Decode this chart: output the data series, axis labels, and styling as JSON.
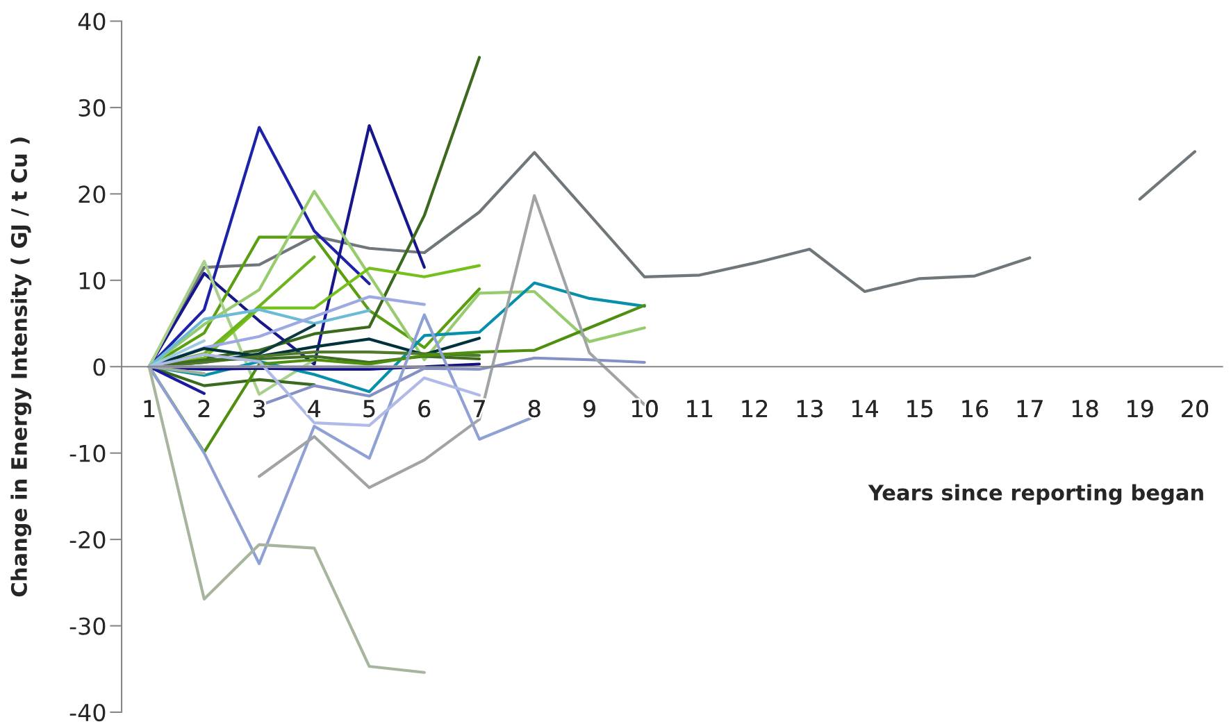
{
  "chart_data": {
    "type": "line",
    "xlabel": "Years since reporting began",
    "ylabel": "Change in Energy Intensity ( GJ / t Cu )",
    "categories": [
      "1",
      "2",
      "3",
      "4",
      "5",
      "6",
      "7",
      "8",
      "9",
      "10",
      "11",
      "12",
      "13",
      "14",
      "15",
      "16",
      "17",
      "18",
      "19",
      "20"
    ],
    "ylim": [
      -40,
      40
    ],
    "yticks": [
      -40,
      -30,
      -20,
      -10,
      0,
      10,
      20,
      30,
      40
    ],
    "grid": false,
    "legend": false,
    "line_style": "solid",
    "marker": "none",
    "series": [
      {
        "color": "#6f777b",
        "values": [
          0,
          11.5,
          11.8,
          15.1,
          13.7,
          13.2,
          17.9,
          24.8,
          17.6,
          10.4,
          10.6,
          12.0,
          13.6,
          8.7,
          10.2,
          10.5,
          12.6,
          null,
          19.4,
          24.9
        ]
      },
      {
        "color": "#1e22a8",
        "values": [
          0,
          6.6,
          27.7,
          15.7,
          9.6,
          null,
          null,
          null,
          null,
          null,
          null,
          null,
          null,
          null,
          null,
          null,
          null,
          null,
          null,
          null
        ]
      },
      {
        "color": "#17168a",
        "values": [
          0,
          10.8,
          5.3,
          0.3,
          27.9,
          11.5,
          null,
          null,
          null,
          null,
          null,
          null,
          null,
          null,
          null,
          null,
          null,
          null,
          null,
          null
        ]
      },
      {
        "color": "#5a9e12",
        "values": [
          0,
          3.9,
          15.0,
          15.0,
          6.5,
          2.2,
          9.0,
          null,
          null,
          null,
          null,
          null,
          null,
          null,
          null,
          null,
          null,
          null,
          null,
          null
        ]
      },
      {
        "color": "#3b6a1f",
        "values": [
          0,
          1.0,
          1.9,
          3.8,
          4.6,
          17.5,
          35.8,
          null,
          null,
          null,
          null,
          null,
          null,
          null,
          null,
          null,
          null,
          null,
          null,
          null
        ]
      },
      {
        "color": "#a8d08c",
        "values": [
          0,
          12.2,
          -3.2,
          0.8,
          null,
          null,
          null,
          null,
          null,
          null,
          null,
          null,
          null,
          null,
          null,
          null,
          null,
          null,
          null,
          null
        ]
      },
      {
        "color": "#96cb6e",
        "values": [
          0,
          4.9,
          8.9,
          20.3,
          10.6,
          0.8,
          8.5,
          8.7,
          2.9,
          4.5,
          null,
          null,
          null,
          null,
          null,
          null,
          null,
          null,
          null,
          null
        ]
      },
      {
        "color": "#76c01e",
        "values": [
          0,
          1.0,
          6.8,
          6.8,
          11.4,
          10.4,
          11.7,
          null,
          null,
          null,
          null,
          null,
          null,
          null,
          null,
          null,
          null,
          null,
          null,
          null
        ]
      },
      {
        "color": "#6cb31c",
        "values": [
          0,
          1.5,
          7.0,
          12.7,
          null,
          null,
          null,
          null,
          null,
          null,
          null,
          null,
          null,
          null,
          null,
          null,
          null,
          null,
          null,
          null
        ]
      },
      {
        "color": "#6bbad8",
        "values": [
          0,
          5.5,
          6.6,
          5.0,
          6.5,
          null,
          null,
          null,
          null,
          null,
          null,
          null,
          null,
          null,
          null,
          null,
          null,
          null,
          null,
          null
        ]
      },
      {
        "color": "#9ca9e2",
        "values": [
          0,
          2.2,
          3.5,
          5.8,
          8.1,
          7.2,
          null,
          null,
          null,
          null,
          null,
          null,
          null,
          null,
          null,
          null,
          null,
          null,
          null,
          null
        ]
      },
      {
        "color": "#0790ab",
        "values": [
          0,
          -1.0,
          0.6,
          -0.9,
          -2.9,
          3.6,
          4.0,
          9.7,
          7.9,
          7.0,
          null,
          null,
          null,
          null,
          null,
          null,
          null,
          null,
          null,
          null
        ]
      },
      {
        "color": "#00323c",
        "values": [
          0,
          2.1,
          1.2,
          2.3,
          3.2,
          1.4,
          3.3,
          null,
          null,
          null,
          null,
          null,
          null,
          null,
          null,
          null,
          null,
          null,
          null,
          null
        ]
      },
      {
        "color": "#0b3a40",
        "values": [
          0,
          0.5,
          1.5,
          4.8,
          null,
          null,
          null,
          null,
          null,
          null,
          null,
          null,
          null,
          null,
          null,
          null,
          null,
          null,
          null,
          null
        ]
      },
      {
        "color": "#4f7a2c",
        "values": [
          0,
          0.5,
          1.2,
          1.7,
          1.7,
          1.5,
          1.3,
          null,
          null,
          null,
          null,
          null,
          null,
          null,
          null,
          null,
          null,
          null,
          null,
          null
        ]
      },
      {
        "color": "#3a6a1e",
        "values": [
          0,
          -2.2,
          -1.5,
          -2.1,
          null,
          null,
          null,
          null,
          null,
          null,
          null,
          null,
          null,
          null,
          null,
          null,
          null,
          null,
          null,
          null
        ]
      },
      {
        "color": "#3f6e22",
        "values": [
          0,
          0.8,
          0.9,
          1.2,
          0.5,
          1.2,
          0.9,
          null,
          null,
          null,
          null,
          null,
          null,
          null,
          null,
          null,
          null,
          null,
          null,
          null
        ]
      },
      {
        "color": "#4f8f10",
        "values": [
          0,
          -9.9,
          0.3,
          0.8,
          0.3,
          1.3,
          1.7,
          1.9,
          4.5,
          7.1,
          null,
          null,
          null,
          null,
          null,
          null,
          null,
          null,
          null,
          null
        ]
      },
      {
        "color": "#1a1aa0",
        "values": [
          0,
          -3.1,
          null,
          null,
          null,
          null,
          null,
          null,
          null,
          null,
          null,
          null,
          null,
          null,
          null,
          null,
          null,
          null,
          null,
          null
        ]
      },
      {
        "color": "#111180",
        "values": [
          0,
          -0.3,
          -0.2,
          -0.3,
          -0.3,
          0.0,
          0.3,
          null,
          null,
          null,
          null,
          null,
          null,
          null,
          null,
          null,
          null,
          null,
          null,
          null
        ]
      },
      {
        "color": "#8590c4",
        "values": [
          null,
          null,
          -4.5,
          -2.2,
          -3.4,
          -0.2,
          -0.3,
          1.0,
          0.8,
          0.5,
          null,
          null,
          null,
          null,
          null,
          null,
          null,
          null,
          null,
          null
        ]
      },
      {
        "color": "#8fa0d5",
        "values": [
          0,
          -10.0,
          -22.8,
          -6.9,
          -10.6,
          6.0,
          -8.4,
          -5.8,
          null,
          null,
          null,
          null,
          null,
          null,
          null,
          null,
          null,
          null,
          null,
          null
        ]
      },
      {
        "color": "#b0b9e8",
        "values": [
          0,
          1.4,
          0.6,
          -6.5,
          -6.8,
          -1.3,
          -3.3,
          null,
          null,
          null,
          null,
          null,
          null,
          null,
          null,
          null,
          null,
          null,
          null,
          null
        ]
      },
      {
        "color": "#a0a4a7",
        "values": [
          null,
          null,
          -12.7,
          -8.1,
          -14.0,
          -10.8,
          -6.1,
          19.8,
          1.6,
          -4.4,
          null,
          null,
          null,
          null,
          null,
          null,
          null,
          null,
          null,
          null
        ]
      },
      {
        "color": "#a7b59f",
        "values": [
          0,
          -26.9,
          -20.6,
          -21.0,
          -34.7,
          -35.4,
          null,
          null,
          null,
          null,
          null,
          null,
          null,
          null,
          null,
          null,
          null,
          null,
          null,
          null
        ]
      },
      {
        "color": "#9fb09b",
        "values": [
          0,
          -0.8,
          null,
          null,
          null,
          null,
          null,
          null,
          null,
          null,
          null,
          null,
          null,
          null,
          null,
          null,
          null,
          null,
          null,
          null
        ]
      },
      {
        "color": "#9ccbe0",
        "values": [
          0,
          3.0,
          null,
          null,
          null,
          null,
          null,
          null,
          null,
          null,
          null,
          null,
          null,
          null,
          null,
          null,
          null,
          null,
          null,
          null
        ]
      },
      {
        "color": "#a3a3cc",
        "values": [
          0,
          0.0,
          0.0,
          0.0,
          0.0,
          0.0,
          null,
          null,
          null,
          null,
          null,
          null,
          null,
          null,
          null,
          null,
          null,
          null,
          null,
          null
        ]
      }
    ]
  }
}
